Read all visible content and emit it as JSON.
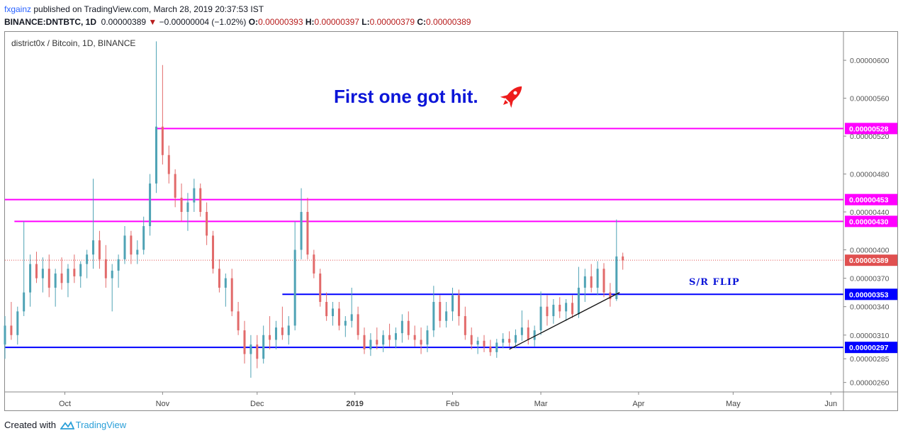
{
  "header": {
    "author": "fxgainz",
    "published_text": "published on TradingView.com, March 28, 2019 20:37:53 IST",
    "symbol": "BINANCE:DNTBTC, 1D",
    "last_price": "0.00000389",
    "change": "−0.00000004 (−1.02%)",
    "o_label": "O:",
    "o_value": "0.00000393",
    "h_label": "H:",
    "h_value": "0.00000397",
    "l_label": "L:",
    "l_value": "0.00000379",
    "c_label": "C:",
    "c_value": "0.00000389"
  },
  "footer": {
    "created_with": "Created with",
    "brand": "TradingView"
  },
  "colors": {
    "up": "#4fa3b5",
    "down": "#e26a6a",
    "resistance": "#ff00ff",
    "support": "#0000ff",
    "annotation": "#0b15d8",
    "rocket": "#ee1c1c"
  },
  "chart_data": {
    "type": "candlestick",
    "title": "district0x / Bitcoin, 1D, BINANCE",
    "annotation": "First one got hit.",
    "sr_label": "S/R FLIP",
    "x_ticks": [
      "Oct",
      "Nov",
      "Dec",
      "2019",
      "Feb",
      "Mar",
      "Apr",
      "May",
      "Jun"
    ],
    "y_ticks": [
      "0.00000600",
      "0.00000560",
      "0.00000520",
      "0.00000480",
      "0.00000440",
      "0.00000400",
      "0.00000370",
      "0.00000340",
      "0.00000310",
      "0.00000285",
      "0.00000260"
    ],
    "ylim": [
      2.5e-06,
      6.3e-06
    ],
    "x_range": [
      "2018-09-12",
      "2019-06-05"
    ],
    "horizontal_levels": [
      {
        "label": "0.00000528",
        "value": 5.28e-06,
        "color": "#ff00ff",
        "from": "2018-10-30"
      },
      {
        "label": "0.00000453",
        "value": 4.53e-06,
        "color": "#ff00ff",
        "from": "2018-09-12"
      },
      {
        "label": "0.00000430",
        "value": 4.3e-06,
        "color": "#ff00ff",
        "from": "2018-09-15"
      },
      {
        "label": "0.00000389",
        "value": 3.89e-06,
        "color": "#e05050",
        "style": "dotted",
        "from": "2018-09-12"
      },
      {
        "label": "0.00000353",
        "value": 3.53e-06,
        "color": "#0000ff",
        "from": "2018-12-09"
      },
      {
        "label": "0.00000297",
        "value": 2.97e-06,
        "color": "#0000ff",
        "from": "2018-09-12"
      }
    ],
    "trendline": {
      "from": [
        "2019-02-19",
        2.95e-06
      ],
      "to": [
        "2019-03-26",
        3.55e-06
      ]
    },
    "candles": [
      [
        "2018-09-12",
        3e-06,
        3.3e-06,
        2.85e-06,
        3.2e-06
      ],
      [
        "2018-09-14",
        3.2e-06,
        3.45e-06,
        3.05e-06,
        3.1e-06
      ],
      [
        "2018-09-16",
        3.1e-06,
        3.4e-06,
        3e-06,
        3.35e-06
      ],
      [
        "2018-09-18",
        3.35e-06,
        4.3e-06,
        3.3e-06,
        3.55e-06
      ],
      [
        "2018-09-20",
        3.55e-06,
        3.95e-06,
        3.4e-06,
        3.85e-06
      ],
      [
        "2018-09-22",
        3.85e-06,
        3.98e-06,
        3.65e-06,
        3.7e-06
      ],
      [
        "2018-09-24",
        3.7e-06,
        3.92e-06,
        3.55e-06,
        3.8e-06
      ],
      [
        "2018-09-26",
        3.8e-06,
        3.95e-06,
        3.5e-06,
        3.6e-06
      ],
      [
        "2018-09-28",
        3.6e-06,
        3.8e-06,
        3.4e-06,
        3.75e-06
      ],
      [
        "2018-09-30",
        3.75e-06,
        3.92e-06,
        3.58e-06,
        3.65e-06
      ],
      [
        "2018-10-02",
        3.65e-06,
        3.85e-06,
        3.5e-06,
        3.8e-06
      ],
      [
        "2018-10-04",
        3.8e-06,
        3.95e-06,
        3.65e-06,
        3.72e-06
      ],
      [
        "2018-10-06",
        3.72e-06,
        3.88e-06,
        3.6e-06,
        3.85e-06
      ],
      [
        "2018-10-08",
        3.85e-06,
        4e-06,
        3.7e-06,
        3.95e-06
      ],
      [
        "2018-10-10",
        3.95e-06,
        4.75e-06,
        3.8e-06,
        4.1e-06
      ],
      [
        "2018-10-12",
        4.1e-06,
        4.2e-06,
        3.8e-06,
        3.9e-06
      ],
      [
        "2018-10-14",
        3.9e-06,
        4.05e-06,
        3.6e-06,
        3.7e-06
      ],
      [
        "2018-10-16",
        3.7e-06,
        3.85e-06,
        3.35e-06,
        3.78e-06
      ],
      [
        "2018-10-18",
        3.78e-06,
        3.95e-06,
        3.6e-06,
        3.9e-06
      ],
      [
        "2018-10-20",
        3.9e-06,
        4.25e-06,
        3.85e-06,
        4.15e-06
      ],
      [
        "2018-10-22",
        4.15e-06,
        4.2e-06,
        3.85e-06,
        3.95e-06
      ],
      [
        "2018-10-24",
        3.95e-06,
        4.1e-06,
        3.85e-06,
        4e-06
      ],
      [
        "2018-10-26",
        4e-06,
        4.35e-06,
        3.95e-06,
        4.25e-06
      ],
      [
        "2018-10-28",
        4.25e-06,
        4.8e-06,
        4.15e-06,
        4.7e-06
      ],
      [
        "2018-10-30",
        4.7e-06,
        6.2e-06,
        4.6e-06,
        5.3e-06
      ],
      [
        "2018-11-01",
        5.3e-06,
        5.95e-06,
        4.9e-06,
        5e-06
      ],
      [
        "2018-11-03",
        5e-06,
        5.1e-06,
        4.7e-06,
        4.8e-06
      ],
      [
        "2018-11-05",
        4.8e-06,
        4.85e-06,
        4.45e-06,
        4.55e-06
      ],
      [
        "2018-11-07",
        4.55e-06,
        4.7e-06,
        4.3e-06,
        4.4e-06
      ],
      [
        "2018-11-09",
        4.4e-06,
        4.6e-06,
        4.2e-06,
        4.5e-06
      ],
      [
        "2018-11-11",
        4.5e-06,
        4.75e-06,
        4.4e-06,
        4.65e-06
      ],
      [
        "2018-11-13",
        4.65e-06,
        4.7e-06,
        4.35e-06,
        4.4e-06
      ],
      [
        "2018-11-15",
        4.4e-06,
        4.5e-06,
        4.05e-06,
        4.15e-06
      ],
      [
        "2018-11-17",
        4.15e-06,
        4.2e-06,
        3.75e-06,
        3.8e-06
      ],
      [
        "2018-11-19",
        3.8e-06,
        3.9e-06,
        3.55e-06,
        3.6e-06
      ],
      [
        "2018-11-21",
        3.6e-06,
        3.75e-06,
        3.4e-06,
        3.7e-06
      ],
      [
        "2018-11-23",
        3.7e-06,
        3.8e-06,
        3.3e-06,
        3.35e-06
      ],
      [
        "2018-11-25",
        3.35e-06,
        3.45e-06,
        3.1e-06,
        3.15e-06
      ],
      [
        "2018-11-27",
        3.15e-06,
        3.25e-06,
        2.8e-06,
        2.9e-06
      ],
      [
        "2018-11-29",
        2.9e-06,
        3.1e-06,
        2.65e-06,
        3e-06
      ],
      [
        "2018-12-01",
        3e-06,
        3.1e-06,
        2.75e-06,
        2.85e-06
      ],
      [
        "2018-12-03",
        2.85e-06,
        3.2e-06,
        2.8e-06,
        3.1e-06
      ],
      [
        "2018-12-05",
        3.1e-06,
        3.3e-06,
        2.95e-06,
        3.05e-06
      ],
      [
        "2018-12-07",
        3.05e-06,
        3.25e-06,
        2.95e-06,
        3.18e-06
      ],
      [
        "2018-12-09",
        3.18e-06,
        3.4e-06,
        3.05e-06,
        3.1e-06
      ],
      [
        "2018-12-11",
        3.1e-06,
        3.3e-06,
        3e-06,
        3.2e-06
      ],
      [
        "2018-12-13",
        3.2e-06,
        4.3e-06,
        3.15e-06,
        4e-06
      ],
      [
        "2018-12-15",
        4e-06,
        4.65e-06,
        3.9e-06,
        4.4e-06
      ],
      [
        "2018-12-17",
        4.4e-06,
        4.55e-06,
        3.9e-06,
        3.95e-06
      ],
      [
        "2018-12-19",
        3.95e-06,
        4e-06,
        3.7e-06,
        3.75e-06
      ],
      [
        "2018-12-21",
        3.75e-06,
        3.8e-06,
        3.4e-06,
        3.45e-06
      ],
      [
        "2018-12-23",
        3.45e-06,
        3.55e-06,
        3.25e-06,
        3.3e-06
      ],
      [
        "2018-12-25",
        3.3e-06,
        3.45e-06,
        3.2e-06,
        3.38e-06
      ],
      [
        "2018-12-27",
        3.38e-06,
        3.45e-06,
        3.15e-06,
        3.2e-06
      ],
      [
        "2018-12-29",
        3.2e-06,
        3.3e-06,
        3.08e-06,
        3.25e-06
      ],
      [
        "2018-12-31",
        3.25e-06,
        3.6e-06,
        3.18e-06,
        3.32e-06
      ],
      [
        "2019-01-02",
        3.32e-06,
        3.4e-06,
        3.05e-06,
        3.1e-06
      ],
      [
        "2019-01-04",
        3.1e-06,
        3.18e-06,
        2.9e-06,
        2.95e-06
      ],
      [
        "2019-01-06",
        2.95e-06,
        3.12e-06,
        2.88e-06,
        3.05e-06
      ],
      [
        "2019-01-08",
        3.05e-06,
        3.18e-06,
        2.95e-06,
        3e-06
      ],
      [
        "2019-01-10",
        3e-06,
        3.15e-06,
        2.92e-06,
        3.1e-06
      ],
      [
        "2019-01-12",
        3.1e-06,
        3.22e-06,
        2.98e-06,
        3.05e-06
      ],
      [
        "2019-01-14",
        3.05e-06,
        3.18e-06,
        2.96e-06,
        3.12e-06
      ],
      [
        "2019-01-16",
        3.12e-06,
        3.32e-06,
        3.02e-06,
        3.25e-06
      ],
      [
        "2019-01-18",
        3.25e-06,
        3.35e-06,
        3.05e-06,
        3.1e-06
      ],
      [
        "2019-01-20",
        3.1e-06,
        3.2e-06,
        2.98e-06,
        3.05e-06
      ],
      [
        "2019-01-22",
        3.05e-06,
        3.18e-06,
        2.9e-06,
        3e-06
      ],
      [
        "2019-01-24",
        3e-06,
        3.2e-06,
        2.92e-06,
        3.15e-06
      ],
      [
        "2019-01-26",
        3.15e-06,
        3.62e-06,
        3.08e-06,
        3.45e-06
      ],
      [
        "2019-01-28",
        3.45e-06,
        3.52e-06,
        3.18e-06,
        3.25e-06
      ],
      [
        "2019-01-30",
        3.25e-06,
        3.45e-06,
        3.18e-06,
        3.35e-06
      ],
      [
        "2019-02-01",
        3.35e-06,
        3.6e-06,
        3.25e-06,
        3.52e-06
      ],
      [
        "2019-02-03",
        3.52e-06,
        3.58e-06,
        3.2e-06,
        3.3e-06
      ],
      [
        "2019-02-05",
        3.3e-06,
        3.4e-06,
        3.05e-06,
        3.1e-06
      ],
      [
        "2019-02-07",
        3.1e-06,
        3.18e-06,
        2.95e-06,
        3e-06
      ],
      [
        "2019-02-09",
        3e-06,
        3.08e-06,
        2.9e-06,
        3.04e-06
      ],
      [
        "2019-02-11",
        3.04e-06,
        3.1e-06,
        2.92e-06,
        2.98e-06
      ],
      [
        "2019-02-13",
        2.98e-06,
        3.05e-06,
        2.88e-06,
        2.92e-06
      ],
      [
        "2019-02-15",
        2.92e-06,
        3.06e-06,
        2.86e-06,
        3.02e-06
      ],
      [
        "2019-02-17",
        3.02e-06,
        3.12e-06,
        2.96e-06,
        3.06e-06
      ],
      [
        "2019-02-19",
        3.06e-06,
        3.14e-06,
        2.98e-06,
        3.02e-06
      ],
      [
        "2019-02-21",
        3.02e-06,
        3.16e-06,
        2.96e-06,
        3.1e-06
      ],
      [
        "2019-02-23",
        3.1e-06,
        3.36e-06,
        3.04e-06,
        3.18e-06
      ],
      [
        "2019-02-25",
        3.18e-06,
        3.26e-06,
        3e-06,
        3.05e-06
      ],
      [
        "2019-02-27",
        3.05e-06,
        3.2e-06,
        2.98e-06,
        3.15e-06
      ],
      [
        "2019-03-01",
        3.15e-06,
        3.56e-06,
        3.1e-06,
        3.4e-06
      ],
      [
        "2019-03-03",
        3.4e-06,
        3.52e-06,
        3.2e-06,
        3.3e-06
      ],
      [
        "2019-03-05",
        3.3e-06,
        3.48e-06,
        3.22e-06,
        3.42e-06
      ],
      [
        "2019-03-07",
        3.42e-06,
        3.5e-06,
        3.28e-06,
        3.35e-06
      ],
      [
        "2019-03-09",
        3.35e-06,
        3.48e-06,
        3.25e-06,
        3.44e-06
      ],
      [
        "2019-03-11",
        3.44e-06,
        3.52e-06,
        3.28e-06,
        3.32e-06
      ],
      [
        "2019-03-13",
        3.32e-06,
        3.82e-06,
        3.28e-06,
        3.6e-06
      ],
      [
        "2019-03-15",
        3.6e-06,
        3.8e-06,
        3.45e-06,
        3.72e-06
      ],
      [
        "2019-03-17",
        3.72e-06,
        3.85e-06,
        3.55e-06,
        3.6e-06
      ],
      [
        "2019-03-19",
        3.6e-06,
        3.88e-06,
        3.52e-06,
        3.8e-06
      ],
      [
        "2019-03-21",
        3.8e-06,
        3.86e-06,
        3.5e-06,
        3.55e-06
      ],
      [
        "2019-03-23",
        3.55e-06,
        3.65e-06,
        3.4e-06,
        3.48e-06
      ],
      [
        "2019-03-25",
        3.48e-06,
        4.32e-06,
        3.46e-06,
        3.93e-06
      ],
      [
        "2019-03-27",
        3.93e-06,
        3.97e-06,
        3.79e-06,
        3.89e-06
      ]
    ]
  }
}
